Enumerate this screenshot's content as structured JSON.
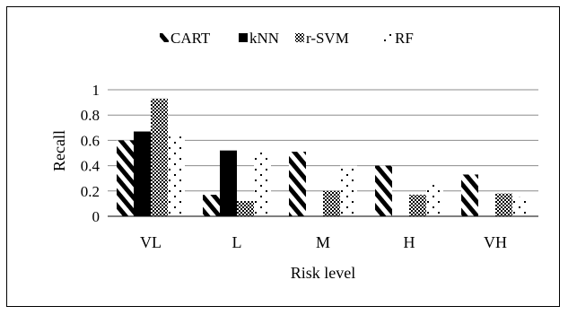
{
  "chart_data": {
    "type": "bar",
    "categories": [
      "VL",
      "L",
      "M",
      "H",
      "VH"
    ],
    "series": [
      {
        "name": "CART",
        "values": [
          0.6,
          0.17,
          0.51,
          0.4,
          0.33
        ],
        "pattern": "diagonal-stripes"
      },
      {
        "name": "kNN",
        "values": [
          0.67,
          0.52,
          0.0,
          0.0,
          0.0
        ],
        "pattern": "solid-black"
      },
      {
        "name": "r-SVM",
        "values": [
          0.93,
          0.12,
          0.2,
          0.17,
          0.18
        ],
        "pattern": "checker"
      },
      {
        "name": "RF",
        "values": [
          0.63,
          0.51,
          0.4,
          0.26,
          0.15
        ],
        "pattern": "sparse-dots"
      }
    ],
    "title": "",
    "xlabel": "Risk level",
    "ylabel": "Recall",
    "ylim": [
      0,
      1
    ],
    "yticks": [
      "0",
      "0.2",
      "0.4",
      "0.6",
      "0.8",
      "1"
    ],
    "grid": true,
    "legend_position": "top-center"
  }
}
